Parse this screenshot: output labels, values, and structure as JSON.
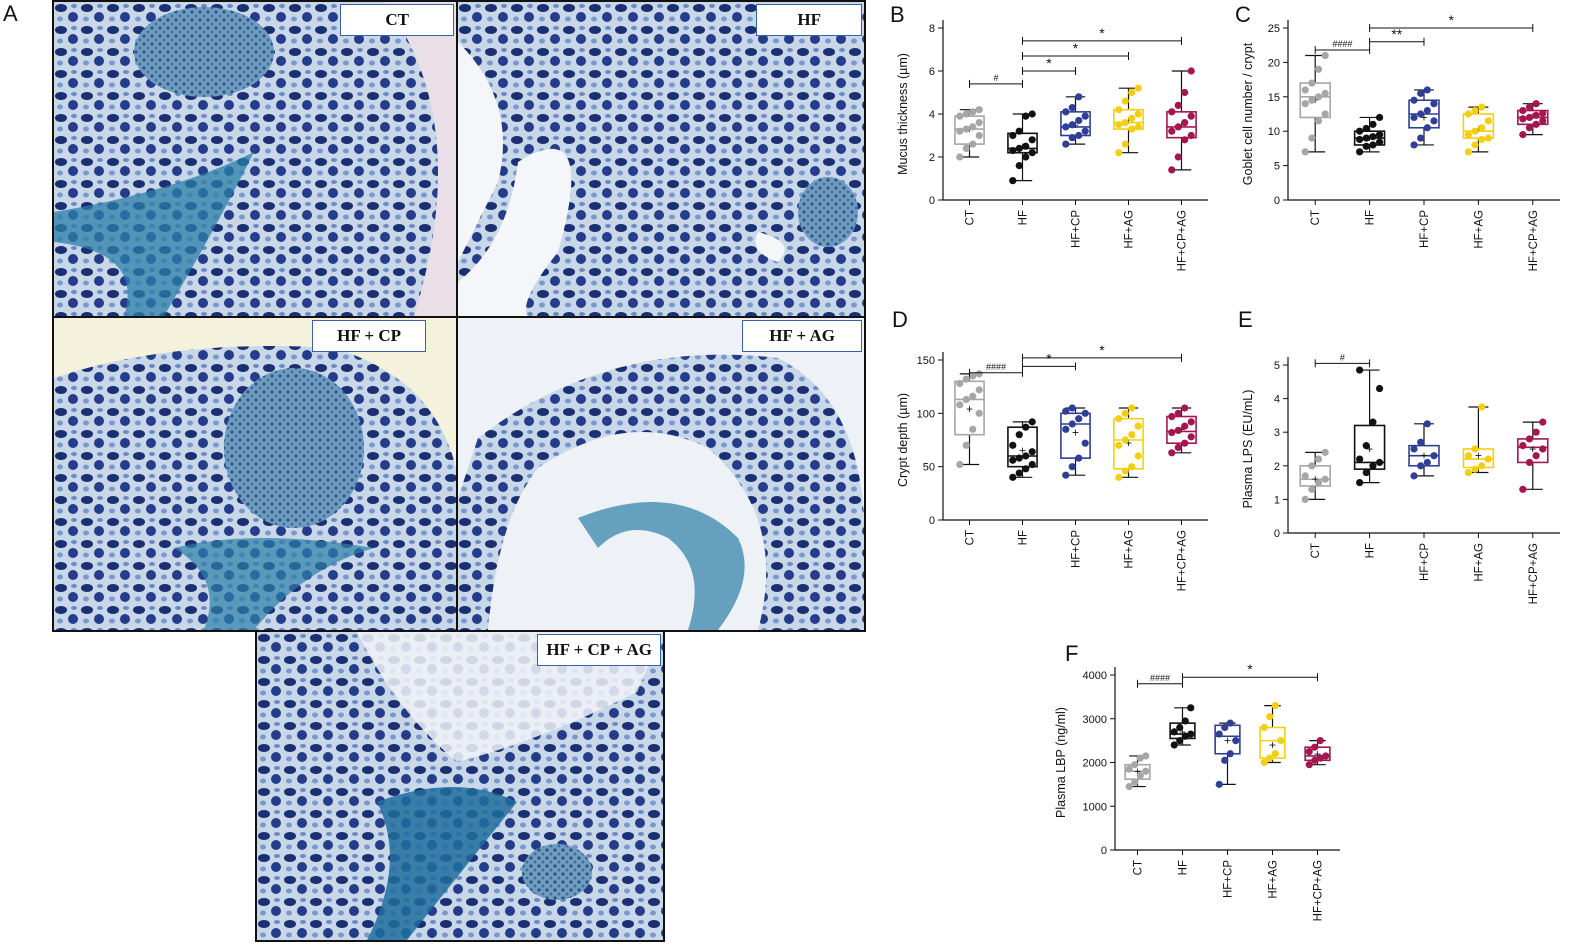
{
  "figure": {
    "panel_letters": [
      "A",
      "B",
      "C",
      "D",
      "E",
      "F"
    ],
    "micrographs": [
      {
        "label": "CT"
      },
      {
        "label": "HF"
      },
      {
        "label": "HF + CP"
      },
      {
        "label": "HF + AG"
      },
      {
        "label": "HF + CP + AG"
      }
    ],
    "group_colors": {
      "CT": "#a6a6a6",
      "HF": "#111111",
      "HF+CP": "#2f3f95",
      "HF+AG": "#f3cf13",
      "HF+CP+AG": "#a3164f"
    }
  },
  "chart_data": [
    {
      "panel": "B",
      "type": "box",
      "categories": [
        "CT",
        "HF",
        "HF+CP",
        "HF+AG",
        "HF+CP+AG"
      ],
      "ylabel": "Mucus thickness (µm)",
      "ylim": [
        0,
        8
      ],
      "yticks": [
        0,
        2,
        4,
        6,
        8
      ],
      "boxes": [
        {
          "min": 2.0,
          "q1": 2.6,
          "median": 3.3,
          "q3": 3.9,
          "max": 4.2,
          "mean": 3.3
        },
        {
          "min": 0.9,
          "q1": 2.2,
          "median": 2.4,
          "q3": 3.1,
          "max": 4.0,
          "mean": 2.5
        },
        {
          "min": 2.6,
          "q1": 3.0,
          "median": 3.4,
          "q3": 4.1,
          "max": 4.8,
          "mean": 3.5
        },
        {
          "min": 2.2,
          "q1": 3.3,
          "median": 3.6,
          "q3": 4.2,
          "max": 5.2,
          "mean": 3.7
        },
        {
          "min": 1.4,
          "q1": 2.9,
          "median": 3.4,
          "q3": 4.1,
          "max": 6.0,
          "mean": 3.5
        }
      ],
      "points": [
        [
          2.0,
          2.4,
          2.6,
          3.0,
          3.2,
          3.3,
          3.4,
          3.6,
          3.9,
          4.0,
          4.1,
          4.2
        ],
        [
          0.9,
          1.6,
          2.0,
          2.2,
          2.3,
          2.4,
          2.5,
          2.8,
          3.0,
          3.2,
          3.9,
          4.0
        ],
        [
          2.6,
          2.9,
          3.0,
          3.2,
          3.4,
          3.5,
          3.7,
          3.9,
          4.1,
          4.3,
          4.8
        ],
        [
          2.2,
          2.6,
          3.3,
          3.4,
          3.5,
          3.6,
          3.8,
          4.0,
          4.2,
          4.6,
          5.0,
          5.2
        ],
        [
          1.4,
          2.0,
          2.8,
          3.0,
          3.2,
          3.4,
          3.6,
          3.9,
          4.1,
          4.4,
          5.0,
          6.0
        ]
      ],
      "significance": [
        {
          "from": 0,
          "to": 1,
          "label": "#",
          "y": 5.4
        },
        {
          "from": 1,
          "to": 2,
          "label": "*",
          "y": 6.0
        },
        {
          "from": 1,
          "to": 3,
          "label": "*",
          "y": 6.7
        },
        {
          "from": 1,
          "to": 4,
          "label": "*",
          "y": 7.4
        }
      ]
    },
    {
      "panel": "C",
      "type": "box",
      "categories": [
        "CT",
        "HF",
        "HF+CP",
        "HF+AG",
        "HF+CP+AG"
      ],
      "ylabel": "Goblet cell number / crypt",
      "ylim": [
        0,
        25
      ],
      "yticks": [
        0,
        5,
        10,
        15,
        20,
        25
      ],
      "boxes": [
        {
          "min": 7.0,
          "q1": 12.0,
          "median": 15.0,
          "q3": 17.0,
          "max": 21.0,
          "mean": 14.5
        },
        {
          "min": 7.0,
          "q1": 8.0,
          "median": 9.0,
          "q3": 10.0,
          "max": 12.0,
          "mean": 9.0
        },
        {
          "min": 8.0,
          "q1": 10.5,
          "median": 12.5,
          "q3": 14.5,
          "max": 16.0,
          "mean": 12.0
        },
        {
          "min": 7.0,
          "q1": 9.0,
          "median": 10.0,
          "q3": 12.5,
          "max": 13.5,
          "mean": 10.3
        },
        {
          "min": 9.5,
          "q1": 11.0,
          "median": 12.0,
          "q3": 13.0,
          "max": 14.0,
          "mean": 12.2
        }
      ],
      "points": [
        [
          7.0,
          9.0,
          11.5,
          12.5,
          14.0,
          14.5,
          15.0,
          15.5,
          16.0,
          17.0,
          19.0,
          21.0
        ],
        [
          7.0,
          7.8,
          8.0,
          8.4,
          8.8,
          9.0,
          9.2,
          9.5,
          10.0,
          10.4,
          11.0,
          12.0
        ],
        [
          8.0,
          9.0,
          10.5,
          11.5,
          12.0,
          12.5,
          13.0,
          14.0,
          14.5,
          15.5,
          16.0
        ],
        [
          7.0,
          8.0,
          8.8,
          9.0,
          9.5,
          10.0,
          10.5,
          11.5,
          12.5,
          13.0,
          13.5
        ],
        [
          9.5,
          10.5,
          11.0,
          11.5,
          11.8,
          12.0,
          12.3,
          12.6,
          13.0,
          13.5,
          14.0
        ]
      ],
      "significance": [
        {
          "from": 0,
          "to": 1,
          "label": "####",
          "y": 21.8
        },
        {
          "from": 1,
          "to": 2,
          "label": "**",
          "y": 23.0
        },
        {
          "from": 1,
          "to": 4,
          "label": "*",
          "y": 25.0
        }
      ]
    },
    {
      "panel": "D",
      "type": "box",
      "categories": [
        "CT",
        "HF",
        "HF+CP",
        "HF+AG",
        "HF+CP+AG"
      ],
      "ylabel": "Crypt depth (µm)",
      "ylim": [
        0,
        150
      ],
      "yticks": [
        0,
        50,
        100,
        150
      ],
      "boxes": [
        {
          "min": 52,
          "q1": 80,
          "median": 113,
          "q3": 130,
          "max": 137,
          "mean": 104
        },
        {
          "min": 40,
          "q1": 50,
          "median": 60,
          "q3": 87,
          "max": 92,
          "mean": 65
        },
        {
          "min": 42,
          "q1": 58,
          "median": 90,
          "q3": 100,
          "max": 105,
          "mean": 82
        },
        {
          "min": 40,
          "q1": 48,
          "median": 75,
          "q3": 95,
          "max": 105,
          "mean": 72
        },
        {
          "min": 63,
          "q1": 72,
          "median": 83,
          "q3": 97,
          "max": 105,
          "mean": 85
        }
      ],
      "points": [
        [
          52,
          70,
          85,
          100,
          108,
          113,
          116,
          122,
          128,
          132,
          135,
          137
        ],
        [
          40,
          44,
          48,
          52,
          56,
          58,
          60,
          64,
          70,
          80,
          87,
          92
        ],
        [
          42,
          50,
          58,
          72,
          85,
          90,
          95,
          100,
          102,
          105
        ],
        [
          40,
          46,
          50,
          60,
          70,
          75,
          80,
          88,
          95,
          100,
          105
        ],
        [
          63,
          68,
          72,
          78,
          82,
          84,
          88,
          92,
          97,
          100,
          105
        ]
      ],
      "significance": [
        {
          "from": 0,
          "to": 1,
          "label": "####",
          "y": 138
        },
        {
          "from": 1,
          "to": 2,
          "label": "*",
          "y": 144
        },
        {
          "from": 1,
          "to": 4,
          "label": "*",
          "y": 152
        }
      ]
    },
    {
      "panel": "E",
      "type": "box",
      "categories": [
        "CT",
        "HF",
        "HF+CP",
        "HF+AG",
        "HF+CP+AG"
      ],
      "ylabel": "Plasma LPS (EU/mL)",
      "ylim": [
        0,
        5
      ],
      "yticks": [
        0,
        1,
        2,
        3,
        4,
        5
      ],
      "boxes": [
        {
          "min": 1.0,
          "q1": 1.4,
          "median": 1.6,
          "q3": 2.0,
          "max": 2.4,
          "mean": 1.6
        },
        {
          "min": 1.5,
          "q1": 1.9,
          "median": 2.1,
          "q3": 3.2,
          "max": 4.85,
          "mean": 2.5
        },
        {
          "min": 1.7,
          "q1": 2.0,
          "median": 2.3,
          "q3": 2.6,
          "max": 3.25,
          "mean": 2.3
        },
        {
          "min": 1.8,
          "q1": 1.95,
          "median": 2.2,
          "q3": 2.5,
          "max": 3.75,
          "mean": 2.3
        },
        {
          "min": 1.3,
          "q1": 2.1,
          "median": 2.55,
          "q3": 2.8,
          "max": 3.3,
          "mean": 2.5
        }
      ],
      "points": [
        [
          1.0,
          1.3,
          1.5,
          1.6,
          1.7,
          2.0,
          2.2,
          2.4
        ],
        [
          1.5,
          1.8,
          2.0,
          2.1,
          2.2,
          2.6,
          3.3,
          4.3,
          4.85
        ],
        [
          1.7,
          2.0,
          2.1,
          2.3,
          2.5,
          2.7,
          3.25
        ],
        [
          1.8,
          1.9,
          2.0,
          2.2,
          2.3,
          2.5,
          3.75
        ],
        [
          1.3,
          2.1,
          2.3,
          2.5,
          2.6,
          2.8,
          3.0,
          3.3
        ]
      ],
      "significance": [
        {
          "from": 0,
          "to": 1,
          "label": "#",
          "y": 5.05
        }
      ]
    },
    {
      "panel": "F",
      "type": "box",
      "categories": [
        "CT",
        "HF",
        "HF+CP",
        "HF+AG",
        "HF+CP+AG"
      ],
      "ylabel": "Plasma LBP (ng/ml)",
      "ylim": [
        0,
        4000
      ],
      "yticks": [
        0,
        1000,
        2000,
        3000,
        4000
      ],
      "boxes": [
        {
          "min": 1450,
          "q1": 1620,
          "median": 1800,
          "q3": 1950,
          "max": 2150,
          "mean": 1800
        },
        {
          "min": 2400,
          "q1": 2550,
          "median": 2650,
          "q3": 2900,
          "max": 3250,
          "mean": 2700
        },
        {
          "min": 1500,
          "q1": 2200,
          "median": 2600,
          "q3": 2850,
          "max": 2900,
          "mean": 2500
        },
        {
          "min": 2000,
          "q1": 2100,
          "median": 2500,
          "q3": 2800,
          "max": 3300,
          "mean": 2400
        },
        {
          "min": 1950,
          "q1": 2050,
          "median": 2150,
          "q3": 2350,
          "max": 2500,
          "mean": 2200
        }
      ],
      "points": [
        [
          1450,
          1550,
          1700,
          1800,
          1850,
          1950,
          2100,
          2150
        ],
        [
          2400,
          2500,
          2600,
          2650,
          2700,
          2800,
          2950,
          3250
        ],
        [
          1500,
          2050,
          2200,
          2500,
          2650,
          2800,
          2900
        ],
        [
          2000,
          2100,
          2200,
          2500,
          2800,
          3050,
          3300
        ],
        [
          1950,
          2050,
          2100,
          2150,
          2250,
          2350,
          2500
        ]
      ],
      "significance": [
        {
          "from": 0,
          "to": 1,
          "label": "####",
          "y": 3800
        },
        {
          "from": 1,
          "to": 4,
          "label": "*",
          "y": 3950
        }
      ]
    }
  ]
}
